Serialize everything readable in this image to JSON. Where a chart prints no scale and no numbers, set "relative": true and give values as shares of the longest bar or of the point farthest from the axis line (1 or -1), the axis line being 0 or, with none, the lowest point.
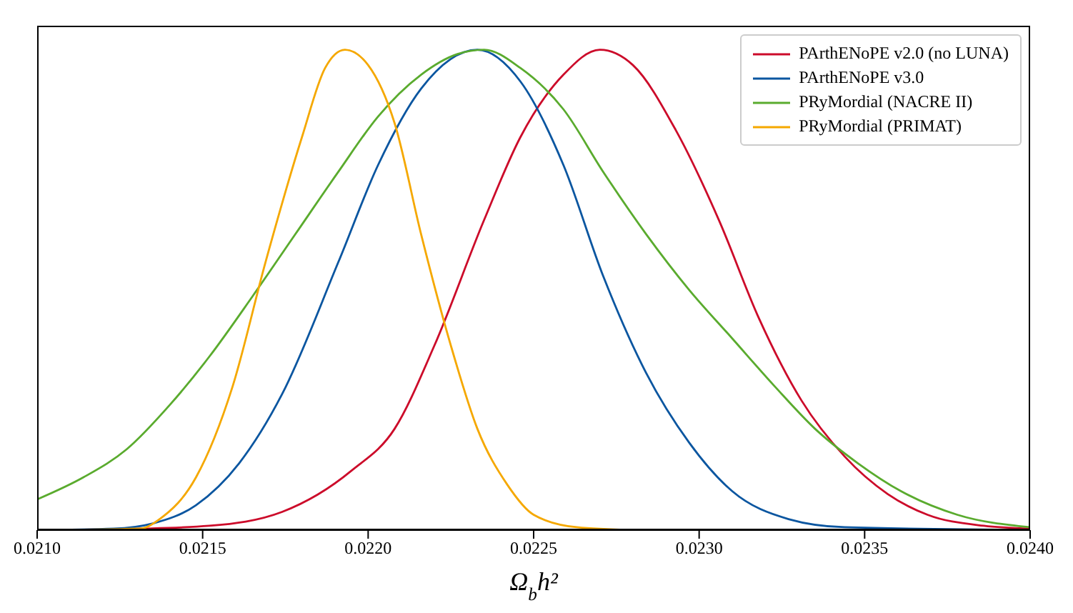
{
  "chart_data": {
    "type": "line",
    "relative": true,
    "xlabel": "Ω$_{b}$h²",
    "tick_labels": "x",
    "legend": "top right",
    "grid": false,
    "marker": "none",
    "line_style": "solid",
    "xlim": [
      0.021,
      0.024
    ],
    "xticks": [
      {
        "value": 0.021,
        "label": "0.0210"
      },
      {
        "value": 0.0215,
        "label": "0.0215"
      },
      {
        "value": 0.022,
        "label": "0.0220"
      },
      {
        "value": 0.0225,
        "label": "0.0225"
      },
      {
        "value": 0.023,
        "label": "0.0230"
      },
      {
        "value": 0.0235,
        "label": "0.0235"
      },
      {
        "value": 0.024,
        "label": "0.0240"
      }
    ],
    "series": [
      {
        "name": "PArthENoPE v2.0 (no LUNA)",
        "color": "#cc0b2a",
        "x": [
          0.021,
          0.02131,
          0.02152,
          0.02174,
          0.02195,
          0.02208,
          0.0222,
          0.02235,
          0.02246,
          0.02259,
          0.0227,
          0.0228,
          0.02293,
          0.02306,
          0.02318,
          0.02331,
          0.02344,
          0.02357,
          0.02369,
          0.02386,
          0.024
        ],
        "values": [
          0,
          0.003,
          0.009,
          0.038,
          0.124,
          0.211,
          0.384,
          0.645,
          0.818,
          0.948,
          1,
          0.968,
          0.832,
          0.645,
          0.442,
          0.269,
          0.153,
          0.075,
          0.032,
          0.009,
          0.003
        ]
      },
      {
        "name": "PArthENoPE v3.0",
        "color": "#0b56a0",
        "x": [
          0.021,
          0.02123,
          0.02135,
          0.02148,
          0.02161,
          0.02174,
          0.02191,
          0.02203,
          0.02216,
          0.02233,
          0.02246,
          0.02259,
          0.02271,
          0.02284,
          0.02297,
          0.0231,
          0.02327,
          0.02344,
          0.024
        ],
        "values": [
          0,
          0.003,
          0.014,
          0.052,
          0.139,
          0.283,
          0.558,
          0.76,
          0.919,
          1,
          0.934,
          0.76,
          0.529,
          0.327,
          0.182,
          0.081,
          0.023,
          0.006,
          0
        ]
      },
      {
        "name": "PRyMordial (NACRE II)",
        "color": "#5aab2e",
        "x": [
          0.021,
          0.02114,
          0.02127,
          0.0214,
          0.02152,
          0.02165,
          0.02178,
          0.02191,
          0.02203,
          0.02216,
          0.02227,
          0.02235,
          0.02246,
          0.02259,
          0.02271,
          0.02284,
          0.02297,
          0.0231,
          0.02323,
          0.02335,
          0.02348,
          0.02361,
          0.02378,
          0.024
        ],
        "values": [
          0.064,
          0.11,
          0.168,
          0.26,
          0.361,
          0.486,
          0.616,
          0.746,
          0.861,
          0.948,
          0.991,
          1,
          0.962,
          0.876,
          0.746,
          0.616,
          0.5,
          0.399,
          0.298,
          0.211,
          0.139,
          0.081,
          0.032,
          0.006
        ]
      },
      {
        "name": "PRyMordial (PRIMAT)",
        "color": "#f5a800",
        "x": [
          0.021,
          0.02131,
          0.02137,
          0.02148,
          0.02159,
          0.02169,
          0.0218,
          0.02187,
          0.02193,
          0.022,
          0.02208,
          0.02216,
          0.02225,
          0.02233,
          0.02242,
          0.0225,
          0.02263,
          0.0228
        ],
        "values": [
          0,
          0.003,
          0.023,
          0.11,
          0.298,
          0.558,
          0.818,
          0.962,
          1,
          0.968,
          0.847,
          0.616,
          0.384,
          0.211,
          0.095,
          0.032,
          0.006,
          0
        ]
      }
    ]
  }
}
